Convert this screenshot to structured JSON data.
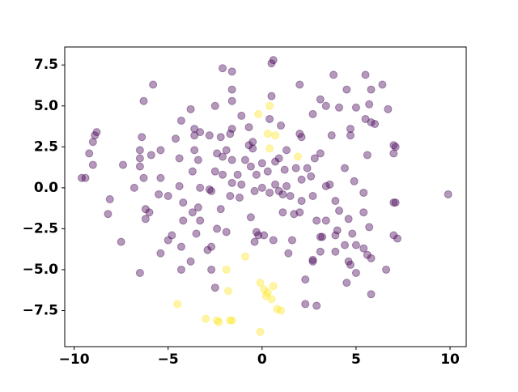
{
  "chart_data": {
    "type": "scatter",
    "xlim": [
      -10.5,
      10.86
    ],
    "ylim": [
      -9.7,
      8.6
    ],
    "xticks": [
      {
        "value": -10,
        "label": "−10"
      },
      {
        "value": -5,
        "label": "−5"
      },
      0,
      5,
      10
    ],
    "yticks": [
      {
        "value": -7.5,
        "label": "−7.5"
      },
      {
        "value": -5,
        "label": "−5.0"
      },
      {
        "value": -2.5,
        "label": "−2.5"
      },
      {
        "value": 0,
        "label": "0.0"
      },
      {
        "value": 2.5,
        "label": "2.5"
      },
      {
        "value": 5,
        "label": "5.0"
      },
      {
        "value": 7.5,
        "label": "7.5"
      }
    ],
    "alpha": 0.4,
    "series": [
      {
        "color": "#440154",
        "x": [
          0.6,
          0.5,
          -2.1,
          -1.6,
          3.8,
          5.5,
          -5.8,
          2.0,
          6.4,
          -1.6,
          4.5,
          5.8,
          0.5,
          -6.3,
          -1.6,
          3.1,
          3.4,
          -2.5,
          -3.8,
          4.1,
          5.0,
          5.7,
          6.7,
          -1.1,
          2.7,
          0.4,
          5.5,
          -4.3,
          -0.7,
          1.0,
          5.8,
          6.0,
          -3.6,
          -3.3,
          -1.6,
          4.7,
          -8.8,
          -8.9,
          -6.4,
          -4.6,
          -3.6,
          -2.8,
          -2.2,
          -1.7,
          2.0,
          2.1,
          3.7,
          4.7,
          -0.5,
          -9.0,
          -0.7,
          7.0,
          7.1,
          -6.5,
          -5.4,
          -3.6,
          -2.4,
          -1.9,
          -0.5,
          1.3,
          3.1,
          5.6,
          -9.2,
          7.0,
          -6.5,
          -5.9,
          -4.4,
          -3.4,
          -2.1,
          -0.9,
          0.9,
          2.8,
          -9.0,
          -7.4,
          -6.5,
          -1.6,
          0.0,
          0.7,
          1.8,
          -0.6,
          0.3,
          1.2,
          2.4,
          4.4,
          -3.7,
          -2.5,
          -2.1,
          -1.3,
          -0.3,
          -5.4,
          -9.4,
          -9.6,
          -6.3,
          -1.6,
          -1.1,
          0.7,
          1.3,
          2.1,
          2.6,
          4.9,
          -6.8,
          -4.4,
          -2.8,
          -2.7,
          -0.4,
          0.0,
          0.4,
          0.9,
          1.1,
          3.4,
          3.6,
          -3.3,
          -5.5,
          -5.0,
          -1.7,
          -1.2,
          1.5,
          2.7,
          5.4,
          9.9,
          -8.1,
          -4.2,
          2.1,
          3.9,
          7.0,
          7.1,
          -3.4,
          -2.2,
          2.0,
          -6.2,
          -6.0,
          -8.2,
          -3.7,
          1.1,
          1.7,
          4.1,
          5.4,
          -0.6,
          2.9,
          3.4,
          4.6,
          -6.2,
          -4.2,
          -3.3,
          5.7,
          -2.4,
          -1.9,
          -0.3,
          4.0,
          7.0,
          -7.5,
          -4.8,
          -3.5,
          -0.2,
          0.1,
          3.1,
          3.2,
          3.9,
          4.8,
          7.2,
          -5.0,
          -4.3,
          -0.4,
          0.6,
          1.6,
          4.4,
          5.0,
          5.4,
          -2.7,
          -2.9,
          3.9,
          3.1,
          -5.4,
          1.4,
          5.6,
          5.8,
          2.7,
          2.7,
          -3.8,
          4.6,
          4.7,
          -2.7,
          6.6,
          -6.5,
          -4.3,
          5.0,
          4.5,
          2.3,
          -2.5,
          5.8,
          2.3,
          2.9
        ],
        "values": [
          7.8,
          7.6,
          7.3,
          7.1,
          6.9,
          6.9,
          6.3,
          6.3,
          6.3,
          6.0,
          6.0,
          6.0,
          5.6,
          5.3,
          5.3,
          5.4,
          5.0,
          5.0,
          4.8,
          4.9,
          4.9,
          5.1,
          4.8,
          4.4,
          4.5,
          4.2,
          4.2,
          4.1,
          3.7,
          3.8,
          4.0,
          3.9,
          3.6,
          3.4,
          3.6,
          3.6,
          3.4,
          3.2,
          3.1,
          3.0,
          3.2,
          3.2,
          3.1,
          3.3,
          3.3,
          3.1,
          3.2,
          3.2,
          2.8,
          2.8,
          2.6,
          2.6,
          2.5,
          2.3,
          2.3,
          2.3,
          2.1,
          2.3,
          2.4,
          2.3,
          2.1,
          2.0,
          2.1,
          2.1,
          1.8,
          2.0,
          1.8,
          1.7,
          1.9,
          1.7,
          1.8,
          1.8,
          1.4,
          1.4,
          1.3,
          1.7,
          1.5,
          1.6,
          1.2,
          1.3,
          1.0,
          1.1,
          1.2,
          1.2,
          1.0,
          1.0,
          0.8,
          0.8,
          0.8,
          0.6,
          0.6,
          0.6,
          0.6,
          0.3,
          0.2,
          0.2,
          0.1,
          0.5,
          0.7,
          0.4,
          0.0,
          0.1,
          -0.1,
          -0.2,
          -0.2,
          0.0,
          -0.3,
          -0.2,
          -0.4,
          0.1,
          0.2,
          0.0,
          -0.4,
          -0.5,
          -0.5,
          -0.6,
          -0.5,
          -0.5,
          -0.3,
          -0.4,
          -0.7,
          -0.9,
          -0.8,
          -0.8,
          -0.9,
          -0.9,
          -1.2,
          -1.3,
          -1.5,
          -1.3,
          -1.5,
          -1.6,
          -1.5,
          -1.5,
          -1.6,
          -1.4,
          -1.5,
          -1.8,
          -2.0,
          -2.0,
          -1.9,
          -1.9,
          -2.0,
          -2.0,
          -2.4,
          -2.5,
          -2.7,
          -2.7,
          -2.6,
          -2.9,
          -3.3,
          -2.9,
          -2.8,
          -2.9,
          -2.9,
          -3.0,
          -3.0,
          -2.9,
          -2.8,
          -3.1,
          -3.2,
          -3.6,
          -3.3,
          -3.2,
          -3.2,
          -3.5,
          -3.5,
          -3.7,
          -3.6,
          -3.8,
          -3.9,
          -3.9,
          -4.0,
          -4.0,
          -4.1,
          -4.3,
          -4.4,
          -4.5,
          -4.5,
          -4.5,
          -4.7,
          -5.0,
          -5.0,
          -5.2,
          -5.0,
          -5.2,
          -5.8,
          -5.6,
          -6.1,
          -6.5,
          -7.1,
          -7.2
        ]
      },
      {
        "color": "#fde725",
        "x": [
          -0.2,
          0.4,
          0.3,
          0.7,
          0.4,
          1.9,
          -0.9,
          -0.1,
          0.6,
          0.1,
          0.3,
          0.2,
          0.5,
          0.8,
          1.0,
          -1.9,
          -1.8,
          -4.5,
          -3.0,
          -2.4,
          -2.3,
          -1.6,
          -1.7,
          -0.1
        ],
        "values": [
          4.5,
          5.0,
          3.3,
          3.2,
          2.4,
          1.9,
          -4.2,
          -5.8,
          -6.0,
          -6.2,
          -6.4,
          -6.6,
          -6.8,
          -7.4,
          -7.5,
          -5.0,
          -6.3,
          -7.1,
          -8.0,
          -8.1,
          -8.2,
          -8.1,
          -8.1,
          -8.8
        ]
      }
    ]
  }
}
